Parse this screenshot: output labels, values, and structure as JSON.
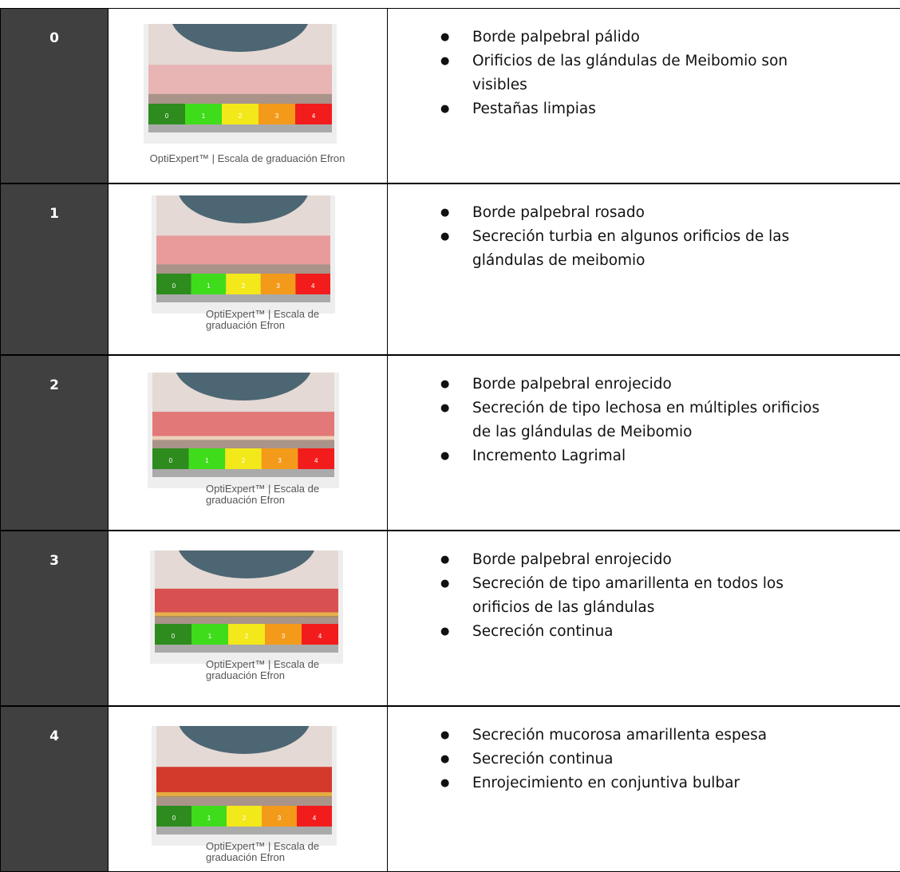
{
  "scale_labels": [
    "0",
    "1",
    "2",
    "3",
    "4"
  ],
  "rows": [
    {
      "grade": "0",
      "caption": "OptiExpert™ | Escala de graduación Efron",
      "bullets": [
        "Borde palpebral pálido",
        "Orificios de las glándulas de Meibomio son visibles",
        "Pestañas limpias"
      ]
    },
    {
      "grade": "1",
      "caption": "OptiExpert™ | Escala de graduación Efron",
      "bullets": [
        "Borde palpebral rosado",
        "Secreción turbia en algunos orificios de las glándulas de meibomio"
      ]
    },
    {
      "grade": "2",
      "caption": "OptiExpert™ | Escala de graduación Efron",
      "bullets": [
        "Borde palpebral enrojecido",
        "Secreción de tipo lechosa en múltiples orificios de las glándulas de Meibomio",
        "Incremento Lagrimal"
      ]
    },
    {
      "grade": "3",
      "caption": "OptiExpert™ | Escala de graduación Efron",
      "bullets": [
        "Borde palpebral enrojecido",
        "Secreción de tipo amarillenta en todos los orificios de las glándulas",
        "Secreción continua"
      ]
    },
    {
      "grade": "4",
      "caption": "OptiExpert™ | Escala de graduación Efron",
      "bullets": [
        "Secreción mucorosa amarillenta espesa",
        "Secreción continua",
        "Enrojecimiento en conjuntiva bulbar"
      ]
    }
  ]
}
